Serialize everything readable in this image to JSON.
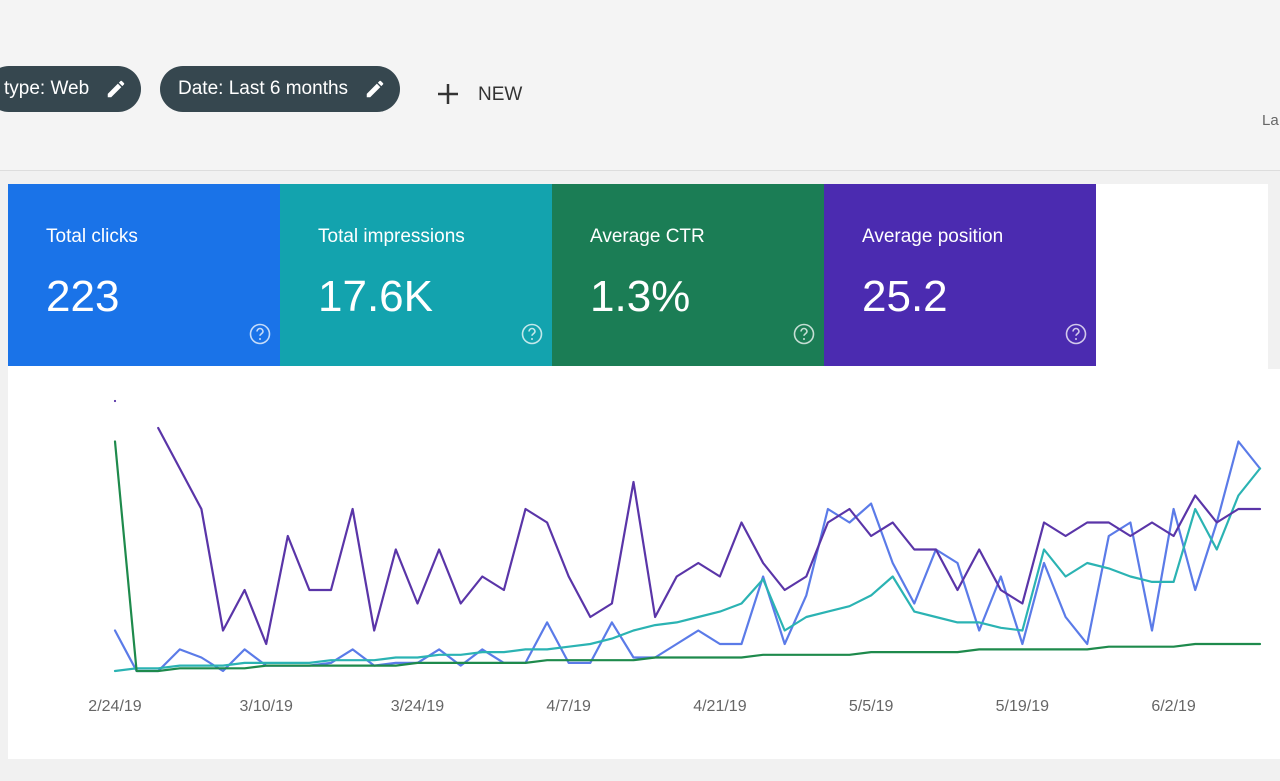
{
  "header": {
    "chips": [
      "type: Web",
      "Date: Last 6 months"
    ],
    "new_button": "NEW",
    "partial_label": "La"
  },
  "cards": [
    {
      "label": "Total clicks",
      "value": "223"
    },
    {
      "label": "Total impressions",
      "value": "17.6K"
    },
    {
      "label": "Average CTR",
      "value": "1.3%"
    },
    {
      "label": "Average position",
      "value": "25.2"
    }
  ],
  "chart_data": {
    "type": "line",
    "categories": [
      "2/24/19",
      null,
      null,
      null,
      null,
      null,
      null,
      "3/10/19",
      null,
      null,
      null,
      null,
      null,
      null,
      "3/24/19",
      null,
      null,
      null,
      null,
      null,
      null,
      "4/7/19",
      null,
      null,
      null,
      null,
      null,
      null,
      "4/21/19",
      null,
      null,
      null,
      null,
      null,
      null,
      "5/5/19",
      null,
      null,
      null,
      null,
      null,
      null,
      "5/19/19",
      null,
      null,
      null,
      null,
      null,
      null,
      "6/2/19",
      null,
      null,
      null,
      null
    ],
    "ylim": [
      0,
      100
    ],
    "series": [
      {
        "color": "#5b7be8",
        "values": [
          15,
          0,
          0,
          8,
          5,
          0,
          8,
          2,
          2,
          2,
          3,
          8,
          2,
          3,
          3,
          8,
          2,
          8,
          3,
          3,
          18,
          3,
          3,
          18,
          5,
          5,
          10,
          15,
          10,
          10,
          35,
          10,
          28,
          60,
          55,
          62,
          40,
          25,
          45,
          40,
          15,
          35,
          10,
          40,
          20,
          10,
          50,
          55,
          15,
          60,
          30,
          55,
          85,
          75
        ]
      },
      {
        "color": "#2bb3b3",
        "values": [
          0,
          1,
          1,
          2,
          2,
          2,
          3,
          3,
          3,
          3,
          4,
          4,
          4,
          5,
          5,
          6,
          6,
          7,
          7,
          8,
          8,
          9,
          10,
          12,
          15,
          17,
          18,
          20,
          22,
          25,
          34,
          15,
          20,
          22,
          24,
          28,
          35,
          22,
          20,
          18,
          18,
          16,
          15,
          45,
          35,
          40,
          38,
          35,
          33,
          33,
          60,
          45,
          65,
          75
        ]
      },
      {
        "color": "#1e8a4c",
        "values": [
          85,
          0,
          0,
          1,
          1,
          1,
          1,
          2,
          2,
          2,
          2,
          2,
          2,
          2,
          3,
          3,
          3,
          3,
          3,
          3,
          4,
          4,
          4,
          4,
          4,
          5,
          5,
          5,
          5,
          5,
          6,
          6,
          6,
          6,
          6,
          7,
          7,
          7,
          7,
          7,
          8,
          8,
          8,
          8,
          8,
          8,
          9,
          9,
          9,
          9,
          10,
          10,
          10,
          10
        ]
      },
      {
        "color": "#5a35a8",
        "values": [
          100,
          null,
          90,
          75,
          60,
          15,
          30,
          10,
          50,
          30,
          30,
          60,
          15,
          45,
          25,
          45,
          25,
          35,
          30,
          60,
          55,
          35,
          20,
          25,
          70,
          20,
          35,
          40,
          35,
          55,
          40,
          30,
          35,
          55,
          60,
          50,
          55,
          45,
          45,
          30,
          45,
          30,
          25,
          55,
          50,
          55,
          55,
          50,
          55,
          50,
          65,
          55,
          60,
          60
        ]
      }
    ]
  }
}
